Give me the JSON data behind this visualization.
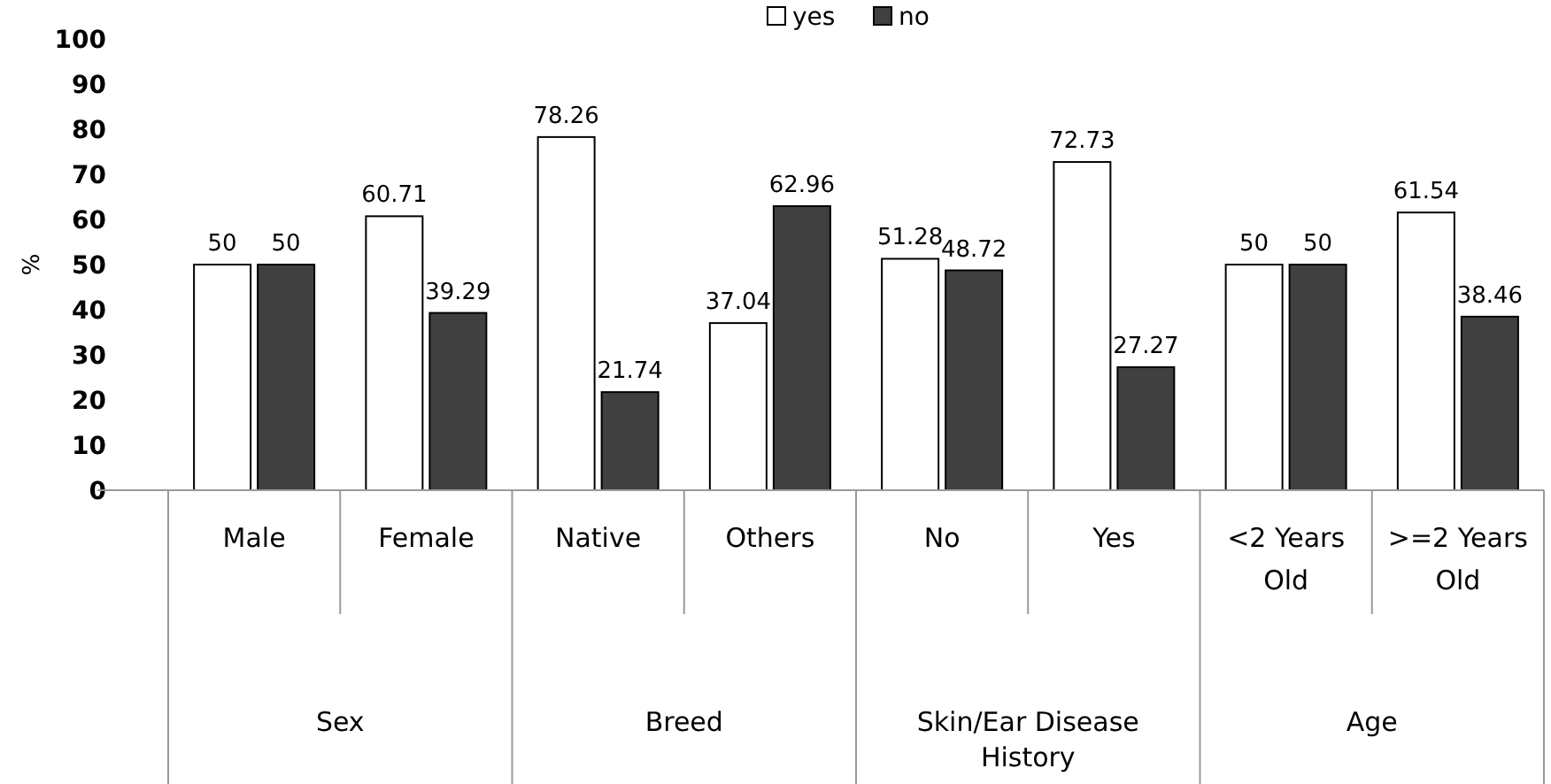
{
  "chart_data": {
    "type": "bar",
    "ylabel": "%",
    "categories": [
      "Male",
      "Female",
      "Native",
      "Others",
      "No",
      "Yes",
      "<2 Years Old",
      ">=2 Years Old"
    ],
    "series": [
      {
        "name": "yes",
        "color": "#ffffff",
        "values": [
          50,
          60.71,
          78.26,
          37.04,
          51.28,
          72.73,
          50,
          61.54
        ]
      },
      {
        "name": "no",
        "color": "#404040",
        "values": [
          50,
          39.29,
          21.74,
          62.96,
          48.72,
          27.27,
          50,
          38.46
        ]
      }
    ],
    "ylim": [
      0,
      100
    ],
    "yticks": [
      0,
      10,
      20,
      30,
      40,
      50,
      60,
      70,
      80,
      90,
      100
    ],
    "grid": false,
    "legend": "top",
    "data_labels": true,
    "annotations": [
      "Sex",
      "Breed",
      "Skin/Ear Disease History",
      "Age"
    ]
  }
}
